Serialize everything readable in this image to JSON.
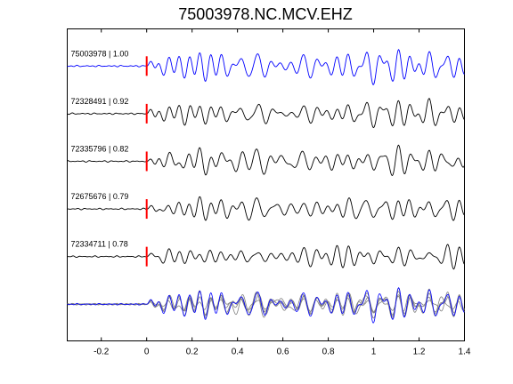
{
  "chart_data": {
    "type": "line",
    "title": "75003978.NC.MCV.EHZ",
    "xlabel": "",
    "ylabel": "",
    "xlim": [
      -0.35,
      1.4
    ],
    "xticks": [
      -0.2,
      0,
      0.2,
      0.4,
      0.6,
      0.8,
      1,
      1.2,
      1.4
    ],
    "xtick_labels": [
      "-0.2",
      "0",
      "0.2",
      "0.4",
      "0.6",
      "0.8",
      "1",
      "1.2",
      "1.4"
    ],
    "grid": false,
    "pick_time": 0,
    "colors": {
      "reference": "#0000ff",
      "match": "#000000",
      "overlay_match": "#808080",
      "pick": "#ff0000"
    },
    "traces": [
      {
        "label": "75003978 | 1.00",
        "event_id": "75003978",
        "correlation": 1.0,
        "reference": true
      },
      {
        "label": "72328491 | 0.92",
        "event_id": "72328491",
        "correlation": 0.92,
        "reference": false
      },
      {
        "label": "72335796 | 0.82",
        "event_id": "72335796",
        "correlation": 0.82,
        "reference": false
      },
      {
        "label": "72675676 | 0.79",
        "event_id": "72675676",
        "correlation": 0.79,
        "reference": false
      },
      {
        "label": "72334711 | 0.78",
        "event_id": "72334711",
        "correlation": 0.78,
        "reference": false
      }
    ]
  }
}
